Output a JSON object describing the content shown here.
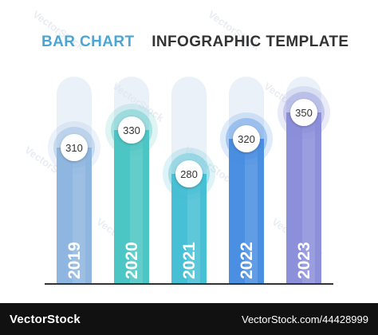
{
  "title": {
    "part1": "BAR CHART",
    "part2": "INFOGRAPHIC TEMPLATE"
  },
  "colors": {
    "title_accent": "#4aa6d6",
    "title_dark": "#333333",
    "bars": [
      "#8fb6e0",
      "#4cc6c4",
      "#47bfd5",
      "#4a8fe1",
      "#8c8fd9"
    ],
    "track": "#dbe6f3",
    "baseline": "#333333"
  },
  "chart_data": {
    "type": "bar",
    "title": "BAR CHART INFOGRAPHIC TEMPLATE",
    "categories": [
      "2019",
      "2020",
      "2021",
      "2022",
      "2023"
    ],
    "values": [
      310,
      330,
      280,
      320,
      350
    ],
    "xlabel": "",
    "ylabel": "",
    "grid": false,
    "legend": "none"
  },
  "watermark": "VectorStock",
  "footer": {
    "brand": "VectorStock",
    "url": "VectorStock.com/44428999"
  }
}
